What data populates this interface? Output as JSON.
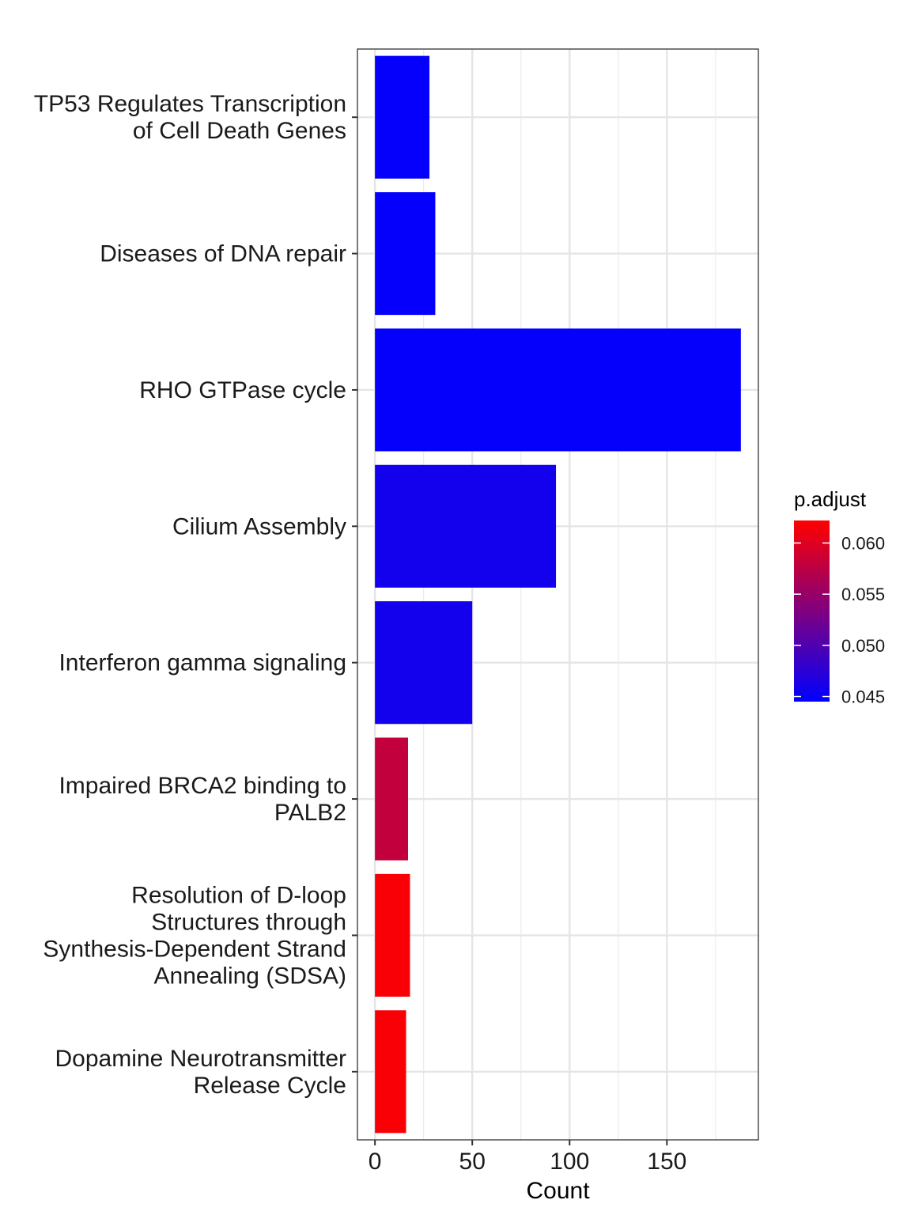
{
  "chart_data": {
    "type": "bar",
    "orientation": "horizontal",
    "categories": [
      [
        "TP53 Regulates Transcription",
        "of Cell Death Genes"
      ],
      [
        "Diseases of DNA repair"
      ],
      [
        "RHO GTPase cycle"
      ],
      [
        "Cilium Assembly"
      ],
      [
        "Interferon gamma signaling"
      ],
      [
        "Impaired BRCA2 binding to",
        "PALB2"
      ],
      [
        "Resolution of D-loop",
        "Structures through",
        "Synthesis-Dependent Strand",
        "Annealing (SDSA)"
      ],
      [
        "Dopamine Neurotransmitter",
        "Release Cycle"
      ]
    ],
    "values": [
      28,
      31,
      188,
      93,
      50,
      17,
      18,
      16
    ],
    "p_adjust": [
      0.0448,
      0.0448,
      0.0448,
      0.0458,
      0.0458,
      0.058,
      0.0618,
      0.0618
    ],
    "xlabel": "Count",
    "ylabel": "",
    "xlim": [
      -9,
      197
    ],
    "x_ticks": [
      0,
      50,
      100,
      150
    ],
    "x_tick_labels": [
      "0",
      "50",
      "100",
      "150"
    ],
    "grid": true,
    "legend": {
      "title": "p.adjust",
      "placement": "right",
      "min": 0.0445,
      "max": 0.0622,
      "low_color": "#0000ff",
      "high_color": "#ff0000",
      "breaks": [
        0.06,
        0.055,
        0.05,
        0.045
      ],
      "break_labels": [
        "0.060",
        "0.055",
        "0.050",
        "0.045"
      ]
    }
  }
}
